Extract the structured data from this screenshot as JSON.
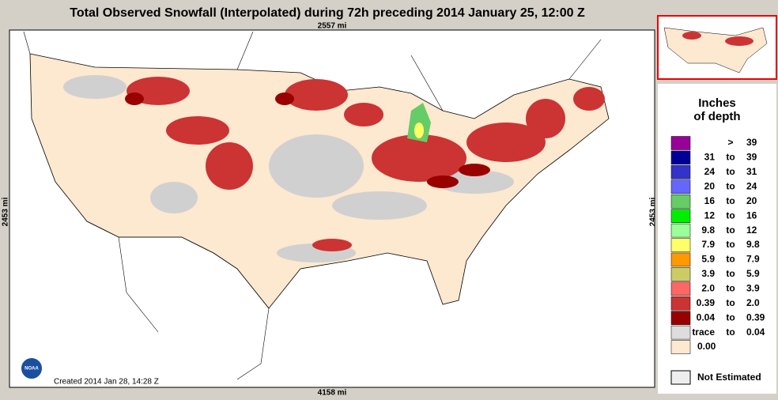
{
  "header": {
    "title": "Total Observed Snowfall (Interpolated) during 72h preceding 2014 January 25, 12:00 Z"
  },
  "map": {
    "top_scale": "2557 mi",
    "left_scale": "2453 mi",
    "right_scale": "2453 mi",
    "bottom_scale": "4158 mi",
    "created": "Created 2014 Jan 28, 14:28 Z",
    "logo": "NOAA"
  },
  "legend": {
    "title": [
      "Inches",
      "of depth"
    ],
    "rows": [
      {
        "color": "#990099",
        "cells": [
          ">",
          "39"
        ]
      },
      {
        "color": "#000099",
        "cells": [
          "31",
          "to",
          "39"
        ]
      },
      {
        "color": "#3333cc",
        "cells": [
          "24",
          "to",
          "31"
        ]
      },
      {
        "color": "#6666ff",
        "cells": [
          "20",
          "to",
          "24"
        ]
      },
      {
        "color": "#66cc66",
        "cells": [
          "16",
          "to",
          "20"
        ]
      },
      {
        "color": "#00ee00",
        "cells": [
          "12",
          "to",
          "16"
        ]
      },
      {
        "color": "#99ff99",
        "cells": [
          "9.8",
          "to",
          "12"
        ]
      },
      {
        "color": "#ffff66",
        "cells": [
          "7.9",
          "to",
          "9.8"
        ]
      },
      {
        "color": "#ff9900",
        "cells": [
          "5.9",
          "to",
          "7.9"
        ]
      },
      {
        "color": "#cccc66",
        "cells": [
          "3.9",
          "to",
          "5.9"
        ]
      },
      {
        "color": "#ff6666",
        "cells": [
          "2.0",
          "to",
          "3.9"
        ]
      },
      {
        "color": "#cc3333",
        "cells": [
          "0.39",
          "to",
          "2.0"
        ]
      },
      {
        "color": "#990000",
        "cells": [
          "0.04",
          "to",
          "0.39"
        ]
      },
      {
        "color": "#dddddd",
        "cells": [
          "trace",
          "to",
          "0.04"
        ]
      },
      {
        "color": "#fde8d0",
        "cells": [
          "0.00"
        ]
      }
    ],
    "not_estimated": "Not Estimated"
  }
}
